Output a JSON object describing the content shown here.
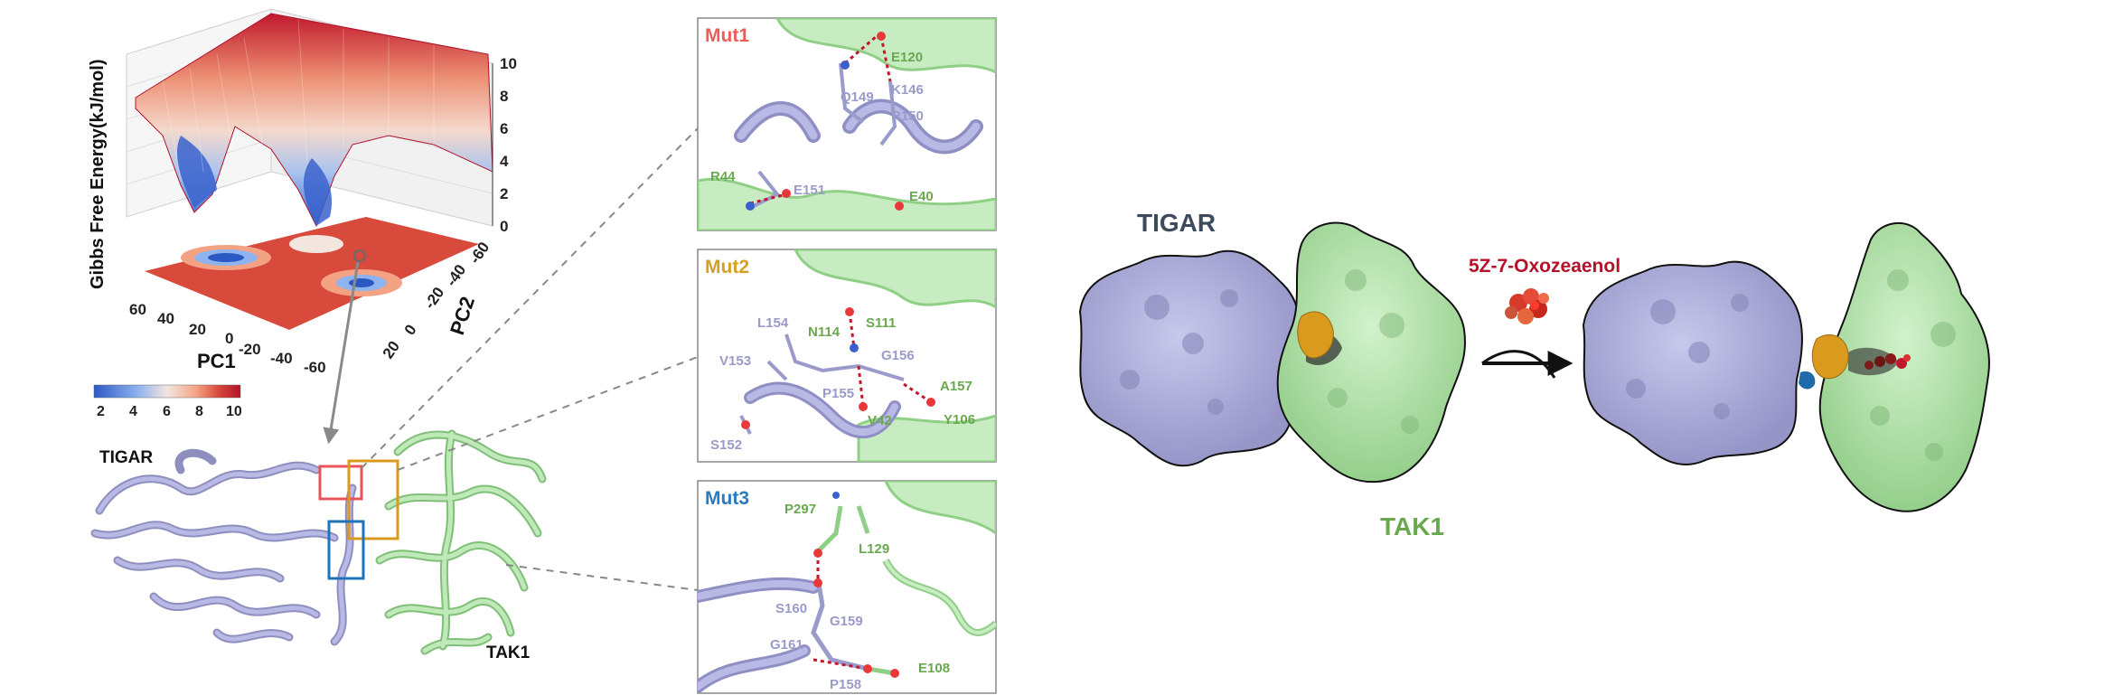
{
  "landscape": {
    "zlabel": "Gibbs Free Energy(kJ/mol)",
    "xlabel": "PC1",
    "ylabel": "PC2",
    "z_ticks": [
      "10",
      "8",
      "6",
      "4",
      "2",
      "0"
    ],
    "pc1_ticks": [
      "60",
      "40",
      "20",
      "0",
      "-20",
      "-40",
      "-60"
    ],
    "pc2_ticks": [
      "20",
      "0",
      "-20",
      "-40",
      "-60"
    ],
    "colorbar_ticks": [
      "2",
      "4",
      "6",
      "8",
      "10"
    ],
    "colors": [
      "#2b59c3",
      "#8fb3ee",
      "#f3e6df",
      "#f3a384",
      "#d84a3c",
      "#b3122a"
    ]
  },
  "complex": {
    "tigar_label": "TIGAR",
    "tak1_label": "TAK1",
    "tigar_color": "#a9a9d8",
    "tak1_color": "#b5e4b0"
  },
  "boxes": [
    {
      "name": "Mut1",
      "color": "#e8545a"
    },
    {
      "name": "Mut2",
      "color": "#d99a1e"
    },
    {
      "name": "Mut3",
      "color": "#1f74b8"
    }
  ],
  "panels": [
    {
      "title": "Mut1",
      "title_color": "#ee5b5b",
      "residues_tigar": [
        "Q149",
        "K146",
        "R150",
        "E151"
      ],
      "residues_tak1": [
        "E120",
        "R44",
        "E40"
      ]
    },
    {
      "title": "Mut2",
      "title_color": "#d4a023",
      "residues_tigar": [
        "L154",
        "V153",
        "G156",
        "P155",
        "S152"
      ],
      "residues_tak1": [
        "N114",
        "S111",
        "A157",
        "V42",
        "Y106"
      ]
    },
    {
      "title": "Mut3",
      "title_color": "#2a7bbd",
      "residues_tigar": [
        "S160",
        "G159",
        "G161",
        "P158"
      ],
      "residues_tak1": [
        "P297",
        "L129",
        "E108"
      ]
    }
  ],
  "surface": {
    "tigar_label": "TIGAR",
    "tak1_label": "TAK1",
    "ligand_label": "5Z-7-Oxozeaenol",
    "tigar_label_color": "#3d4a5c",
    "tak1_label_color": "#6aa84f",
    "ligand_label_color": "#b3122a"
  }
}
